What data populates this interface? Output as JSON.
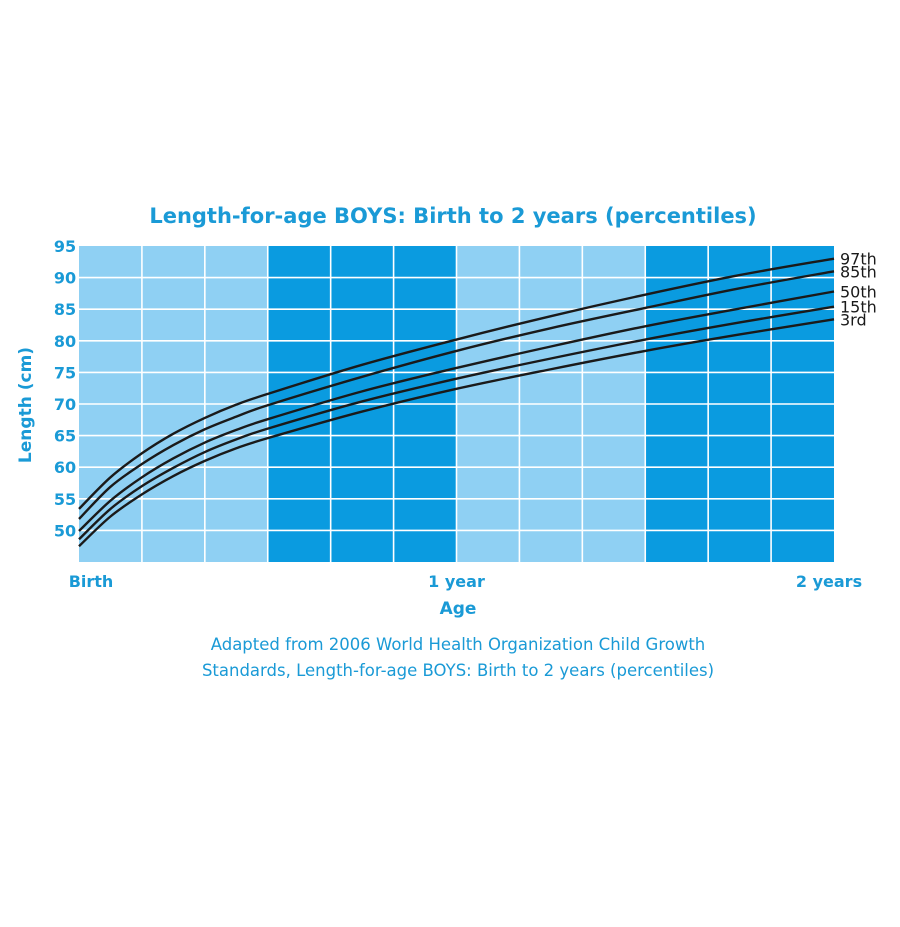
{
  "chart_data": {
    "type": "line",
    "title": "Length-for-age BOYS: Birth to 2 years (percentiles)",
    "xlabel": "Age",
    "ylabel": "Length (cm)",
    "x_unit": "months",
    "xlim": [
      0,
      24
    ],
    "ylim": [
      45,
      95
    ],
    "y_ticks": [
      50,
      55,
      60,
      65,
      70,
      75,
      80,
      85,
      90,
      95
    ],
    "x_tick_labels": [
      {
        "x": 0,
        "label": "Birth"
      },
      {
        "x": 12,
        "label": "1 year"
      },
      {
        "x": 24,
        "label": "2 years"
      }
    ],
    "grid": true,
    "x": [
      0,
      1,
      2,
      3,
      4,
      5,
      6,
      9,
      12,
      15,
      18,
      21,
      24
    ],
    "series": [
      {
        "name": "97th",
        "values": [
          53.4,
          58.4,
          62.2,
          65.3,
          67.8,
          69.9,
          71.6,
          76.2,
          80.2,
          83.9,
          87.3,
          90.4,
          93.0
        ]
      },
      {
        "name": "85th",
        "values": [
          51.8,
          56.9,
          60.5,
          63.5,
          66.0,
          68.0,
          69.8,
          74.3,
          78.4,
          82.0,
          85.2,
          88.3,
          91.0
        ]
      },
      {
        "name": "50th",
        "values": [
          49.9,
          54.7,
          58.4,
          61.4,
          63.9,
          65.9,
          67.6,
          72.0,
          75.7,
          79.1,
          82.3,
          85.1,
          87.8
        ]
      },
      {
        "name": "15th",
        "values": [
          48.6,
          53.4,
          57.0,
          59.9,
          62.4,
          64.4,
          66.1,
          70.4,
          74.0,
          77.2,
          80.2,
          82.9,
          85.4
        ]
      },
      {
        "name": "3rd",
        "values": [
          47.5,
          52.2,
          55.7,
          58.6,
          61.0,
          63.0,
          64.6,
          68.8,
          72.4,
          75.5,
          78.4,
          81.0,
          83.4
        ]
      }
    ],
    "bands": [
      {
        "from": 0,
        "to": 6,
        "color": "#8fd0f3"
      },
      {
        "from": 6,
        "to": 12,
        "color": "#0a9be0"
      },
      {
        "from": 12,
        "to": 18,
        "color": "#8fd0f3"
      },
      {
        "from": 18,
        "to": 24,
        "color": "#0a9be0"
      }
    ]
  },
  "source_note": [
    "Adapted from 2006 World Health Organization Child Growth",
    "Standards, Length-for-age BOYS: Birth to 2 years (percentiles)"
  ],
  "colors": {
    "accent_text": "#1a9ad6",
    "light_band": "#8fd0f3",
    "dark_band": "#0a9be0",
    "grid": "#ffffff",
    "curve": "#1a1a1a"
  }
}
